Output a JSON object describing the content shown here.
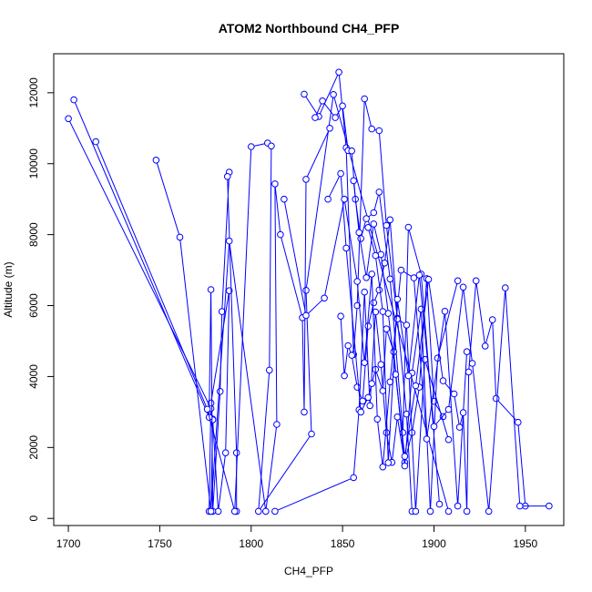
{
  "chart_data": {
    "type": "line",
    "title": "ATOM2 Northbound CH4_PFP",
    "xlabel": "CH4_PFP",
    "ylabel": "Altitude (m)",
    "xlim": [
      1692,
      1971
    ],
    "ylim": [
      -200,
      13100
    ],
    "xticks": [
      1700,
      1750,
      1800,
      1850,
      1900,
      1950
    ],
    "yticks": [
      0,
      2000,
      4000,
      6000,
      8000,
      10000,
      12000
    ],
    "grid": false,
    "color": "#0000ff",
    "marker": "open-circle",
    "series": [
      {
        "x": [
          1700,
          1778,
          1779,
          1778,
          1779,
          1782,
          1786,
          1788,
          1778,
          1777
        ],
        "y": [
          11270,
          3100,
          2800,
          200,
          2780,
          200,
          1850,
          6420,
          3250,
          200
        ]
      },
      {
        "x": [
          1703,
          1777,
          1778,
          1779,
          1783,
          1784,
          1788,
          1787,
          1792,
          1792
        ],
        "y": [
          11800,
          2850,
          6450,
          200,
          3580,
          5830,
          9760,
          9640,
          1850,
          200
        ]
      },
      {
        "x": [
          1715,
          1776,
          1791,
          1800,
          1809,
          1811,
          1810,
          1804,
          1833,
          1830,
          1845,
          1908
        ],
        "y": [
          10620,
          3080,
          200,
          10480,
          10580,
          10500,
          4180,
          200,
          2380,
          6430,
          11950,
          200
        ]
      },
      {
        "x": [
          1748,
          1761,
          1778,
          1788,
          1808,
          1814,
          1813,
          1816,
          1828,
          1829,
          1830,
          1843
        ],
        "y": [
          10100,
          7930,
          200,
          7820,
          200,
          2650,
          9430,
          8000,
          5660,
          3000,
          9560,
          11000
        ]
      },
      {
        "x": [
          1829,
          1837,
          1848,
          1852,
          1856,
          1858,
          1862,
          1866,
          1870,
          1874,
          1880,
          1885,
          1888
        ],
        "y": [
          11960,
          11330,
          12580,
          10450,
          4620,
          6000,
          11830,
          10980,
          10930,
          8260,
          5640,
          2940,
          200
        ]
      },
      {
        "x": [
          1835,
          1839,
          1846,
          1850,
          1853,
          1855,
          1857,
          1860,
          1863,
          1867,
          1870,
          1876,
          1883,
          1886,
          1893,
          1903
        ],
        "y": [
          11300,
          11770,
          11300,
          11630,
          10370,
          10360,
          9000,
          7890,
          8450,
          8620,
          9200,
          6750,
          2420,
          8210,
          6890,
          400
        ]
      },
      {
        "x": [
          1813,
          1856,
          1859,
          1862,
          1865,
          1868,
          1871,
          1874,
          1877,
          1880,
          1884,
          1888,
          1892,
          1896,
          1900,
          1905
        ],
        "y": [
          200,
          1150,
          3060,
          6380,
          3180,
          5820,
          4340,
          2420,
          1580,
          2860,
          1580,
          2420,
          3700,
          6760,
          3300,
          2870
        ]
      },
      {
        "x": [
          1849,
          1851,
          1853,
          1855,
          1858,
          1861,
          1864,
          1867,
          1870,
          1873,
          1876,
          1880,
          1885,
          1890,
          1895,
          1908
        ],
        "y": [
          5700,
          4020,
          4870,
          4600,
          3700,
          3310,
          5420,
          6080,
          6440,
          7200,
          8420,
          5620,
          5450,
          200,
          4480,
          2220
        ]
      },
      {
        "x": [
          1842,
          1849,
          1852,
          1860,
          1864,
          1866,
          1868,
          1872,
          1874,
          1878,
          1884,
          1888,
          1893,
          1898,
          1902,
          1913
        ],
        "y": [
          9000,
          9720,
          7620,
          3000,
          3410,
          3800,
          4200,
          3600,
          5340,
          4700,
          1480,
          4100,
          5900,
          200,
          4520,
          6700
        ]
      },
      {
        "x": [
          1818,
          1830,
          1840,
          1851,
          1858,
          1862,
          1866,
          1869,
          1872,
          1876,
          1882,
          1889,
          1896,
          1906,
          1913,
          1918
        ],
        "y": [
          9000,
          5720,
          6210,
          9000,
          6680,
          4390,
          6890,
          2800,
          1450,
          3850,
          7000,
          6780,
          2240,
          5840,
          350,
          4700
        ]
      },
      {
        "x": [
          1856,
          1859,
          1863,
          1867,
          1871,
          1875,
          1879,
          1884,
          1890,
          1897,
          1905,
          1911,
          1914,
          1916,
          1918,
          1919,
          1923,
          1928,
          1932,
          1934,
          1946,
          1950
        ],
        "y": [
          9520,
          8060,
          6790,
          8300,
          7440,
          5780,
          4060,
          1750,
          3740,
          6740,
          3880,
          3510,
          2570,
          2980,
          200,
          4130,
          6700,
          4860,
          5600,
          3380,
          2710,
          350
        ]
      },
      {
        "x": [
          1864,
          1868,
          1872,
          1875,
          1880,
          1886,
          1892,
          1900,
          1908,
          1916,
          1921,
          1930,
          1939,
          1947,
          1963
        ],
        "y": [
          8200,
          7410,
          5830,
          1570,
          6180,
          4020,
          6860,
          2590,
          3070,
          6520,
          4370,
          200,
          6500,
          350,
          350
        ]
      }
    ]
  }
}
